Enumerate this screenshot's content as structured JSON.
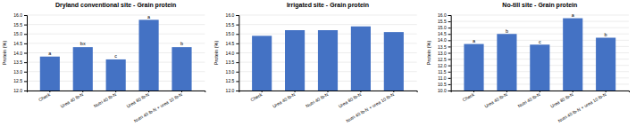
{
  "chart_data": [
    {
      "type": "bar",
      "title": "Dryland conventional site - Grain protein",
      "categories": [
        "Check",
        "Urea 40 lb-N",
        "Nutri 40 lb-N",
        "Urea 80 lb-N",
        "Nutri 40 lb-N + urea 10 lb-N"
      ],
      "values": [
        13.8,
        14.3,
        13.65,
        15.75,
        14.3
      ],
      "annotations": [
        "a",
        "bx",
        "c",
        "a",
        "b"
      ],
      "color": "#4472c4",
      "y_label": "Protein (%)",
      "ylim": [
        12.0,
        16.0
      ],
      "yticks": [
        {
          "value": 12,
          "label": "12.0"
        },
        12.5,
        {
          "value": 13,
          "label": "13.0"
        },
        13.5,
        {
          "value": 14,
          "label": "14.0"
        },
        14.5,
        {
          "value": 15,
          "label": "15.0"
        },
        15.5,
        {
          "value": 16,
          "label": "16.0"
        }
      ],
      "grid": true
    },
    {
      "type": "bar",
      "title": "Irrigated site - Grain protein",
      "categories": [
        "Check",
        "Urea 40 lb-N",
        "Nutri 40 lb-N",
        "Urea 80 lb-N",
        "Nutri 40 lb-N + urea 10 lb-N"
      ],
      "values": [
        14.9,
        15.2,
        15.2,
        15.4,
        15.1
      ],
      "color": "#4472c4",
      "y_label": "Protein (%)",
      "ylim": [
        12.0,
        16.0
      ],
      "yticks": [
        {
          "value": 12,
          "label": "12.0"
        },
        12.5,
        {
          "value": 13,
          "label": "13.0"
        },
        13.5,
        {
          "value": 14,
          "label": "14.0"
        },
        14.5,
        {
          "value": 15,
          "label": "15.0"
        },
        15.5,
        {
          "value": 16,
          "label": "16.0"
        }
      ],
      "grid": true
    },
    {
      "type": "bar",
      "title": "No-till site - Grain protein",
      "categories": [
        "Check",
        "Urea 40 lb-N",
        "Nutri 40 lb-N",
        "Urea 80 lb-N",
        "Nutri 40 lb-N + urea 10 lb-N"
      ],
      "values": [
        13.7,
        14.5,
        13.65,
        15.75,
        14.2
      ],
      "annotations": [
        "a",
        "b",
        "c",
        "a",
        "b"
      ],
      "color": "#4472c4",
      "y_label": "Protein (%)",
      "ylim": [
        10.0,
        16.0
      ],
      "yticks": [
        {
          "value": 10,
          "label": "10.0"
        },
        10.5,
        {
          "value": 11,
          "label": "11.0"
        },
        11.5,
        {
          "value": 12,
          "label": "12.0"
        },
        12.5,
        {
          "value": 13,
          "label": "13.0"
        },
        13.5,
        {
          "value": 14,
          "label": "14.0"
        },
        14.5,
        {
          "value": 15,
          "label": "15.0"
        },
        15.5,
        {
          "value": 16,
          "label": "16.0"
        }
      ],
      "grid": true
    }
  ]
}
